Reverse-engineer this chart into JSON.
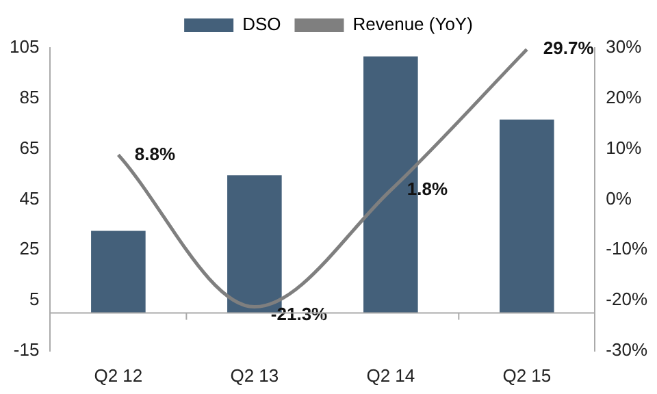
{
  "chart_data": {
    "type": "bar",
    "categories": [
      "Q2 12",
      "Q2 13",
      "Q2 14",
      "Q2 15"
    ],
    "series": [
      {
        "name": "DSO",
        "color": "#44607a",
        "values": [
          32.5,
          54.5,
          101.6,
          76.6
        ]
      },
      {
        "name": "Revenue (YoY)",
        "type": "line",
        "axis": "y2",
        "color": "#7f7f7f",
        "values": [
          8.8,
          -21.3,
          1.8,
          29.7
        ],
        "value_labels": [
          "8.8%",
          "-21.3%",
          "1.8%",
          "29.7%"
        ]
      }
    ],
    "ylim": [
      -15,
      105
    ],
    "yticks": [
      -15,
      5,
      25,
      45,
      65,
      85,
      105
    ],
    "y2lim": [
      -30,
      30
    ],
    "y2ticks": [
      {
        "value": -30,
        "label": "-30%"
      },
      {
        "value": -20,
        "label": "-20%"
      },
      {
        "value": -10,
        "label": "-10%"
      },
      {
        "value": 0,
        "label": "0%"
      },
      {
        "value": 10,
        "label": "10%"
      },
      {
        "value": 20,
        "label": "20%"
      },
      {
        "value": 30,
        "label": "30%"
      }
    ],
    "legend": "top",
    "grid": false,
    "marker": "none"
  }
}
